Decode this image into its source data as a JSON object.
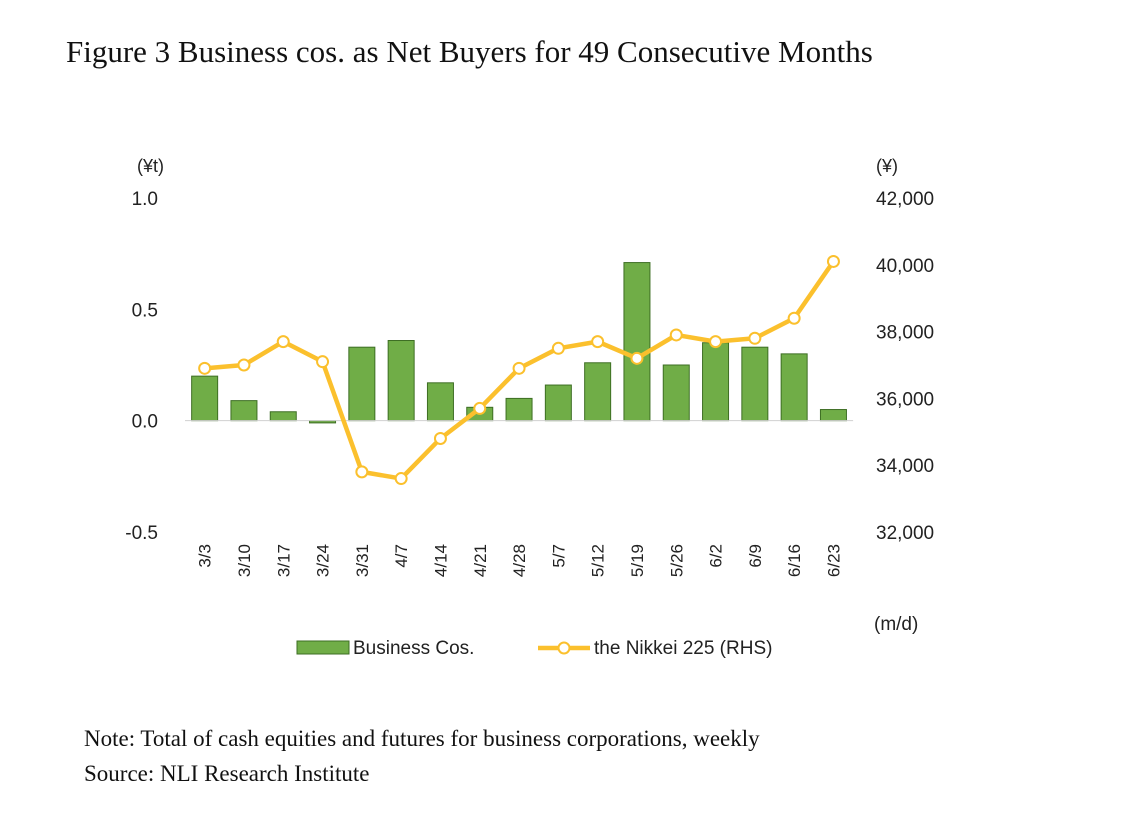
{
  "title": "Figure 3 Business cos. as Net Buyers for 49 Consecutive Months",
  "note": "Note: Total of cash equities and futures for business corporations, weekly",
  "source": "Source: NLI Research Institute",
  "chart_data": {
    "type": "bar+line",
    "categories": [
      "3/3",
      "3/10",
      "3/17",
      "3/24",
      "3/31",
      "4/7",
      "4/14",
      "4/21",
      "4/28",
      "5/7",
      "5/12",
      "5/19",
      "5/26",
      "6/2",
      "6/9",
      "6/16",
      "6/23"
    ],
    "series": [
      {
        "name": "Business Cos.",
        "type": "bar",
        "axis": "left",
        "color": "#70ad47",
        "values": [
          0.2,
          0.09,
          0.04,
          -0.01,
          0.33,
          0.36,
          0.17,
          0.06,
          0.1,
          0.16,
          0.26,
          0.71,
          0.25,
          0.35,
          0.33,
          0.3,
          0.05
        ]
      },
      {
        "name": "the Nikkei 225 (RHS)",
        "type": "line",
        "axis": "right",
        "color": "#fbc02d",
        "values": [
          36900,
          37000,
          37700,
          37100,
          33800,
          33600,
          34800,
          35700,
          36900,
          37500,
          37700,
          37200,
          37900,
          37700,
          37800,
          38400,
          40100
        ]
      }
    ],
    "y_left": {
      "unit": "(¥t)",
      "range": [
        -0.5,
        1.0
      ],
      "ticks": [
        "1.0",
        "0.5",
        "0.0",
        "-0.5"
      ]
    },
    "y_right": {
      "unit": "(¥)",
      "range": [
        32000,
        42000
      ],
      "ticks": [
        "42,000",
        "40,000",
        "38,000",
        "36,000",
        "34,000",
        "32,000"
      ]
    },
    "x_unit": "(m/d)",
    "legend": [
      "Business Cos.",
      "the Nikkei 225 (RHS)"
    ]
  }
}
